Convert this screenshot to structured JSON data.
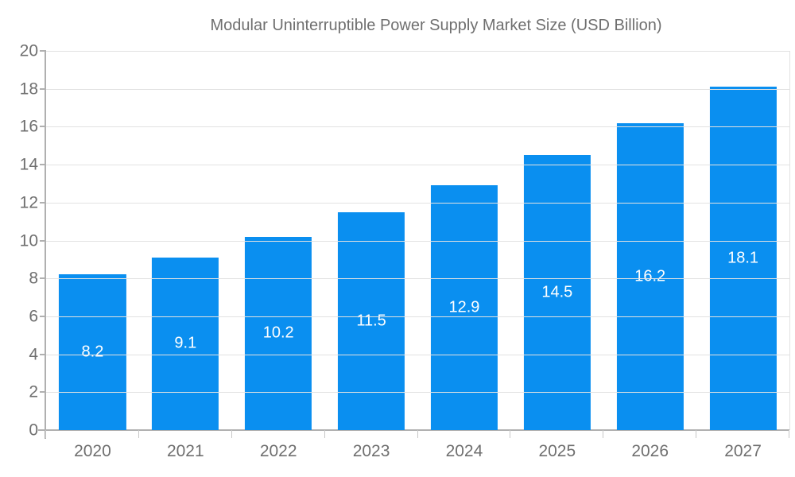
{
  "legend": {
    "label": "Modular Uninterruptible Power Supply Market Size (USD Billion)"
  },
  "chart_data": {
    "type": "bar",
    "title": "Modular Uninterruptible Power Supply Market Size (USD Billion)",
    "categories": [
      "2020",
      "2021",
      "2022",
      "2023",
      "2024",
      "2025",
      "2026",
      "2027"
    ],
    "values": [
      8.2,
      9.1,
      10.2,
      11.5,
      12.9,
      14.5,
      16.2,
      18.1
    ],
    "xlabel": "",
    "ylabel": "",
    "ylim": [
      0,
      20
    ],
    "ytick_step": 2,
    "yticks": [
      0,
      2,
      4,
      6,
      8,
      10,
      12,
      14,
      16,
      18,
      20
    ],
    "grid": true,
    "legend_position": "top",
    "bar_color": "#0a8ff0",
    "value_label_color": "#ffffff",
    "axis_color": "#b0b0b0",
    "grid_color": "#e2e2e2",
    "tick_label_color": "#6f6f6f"
  }
}
